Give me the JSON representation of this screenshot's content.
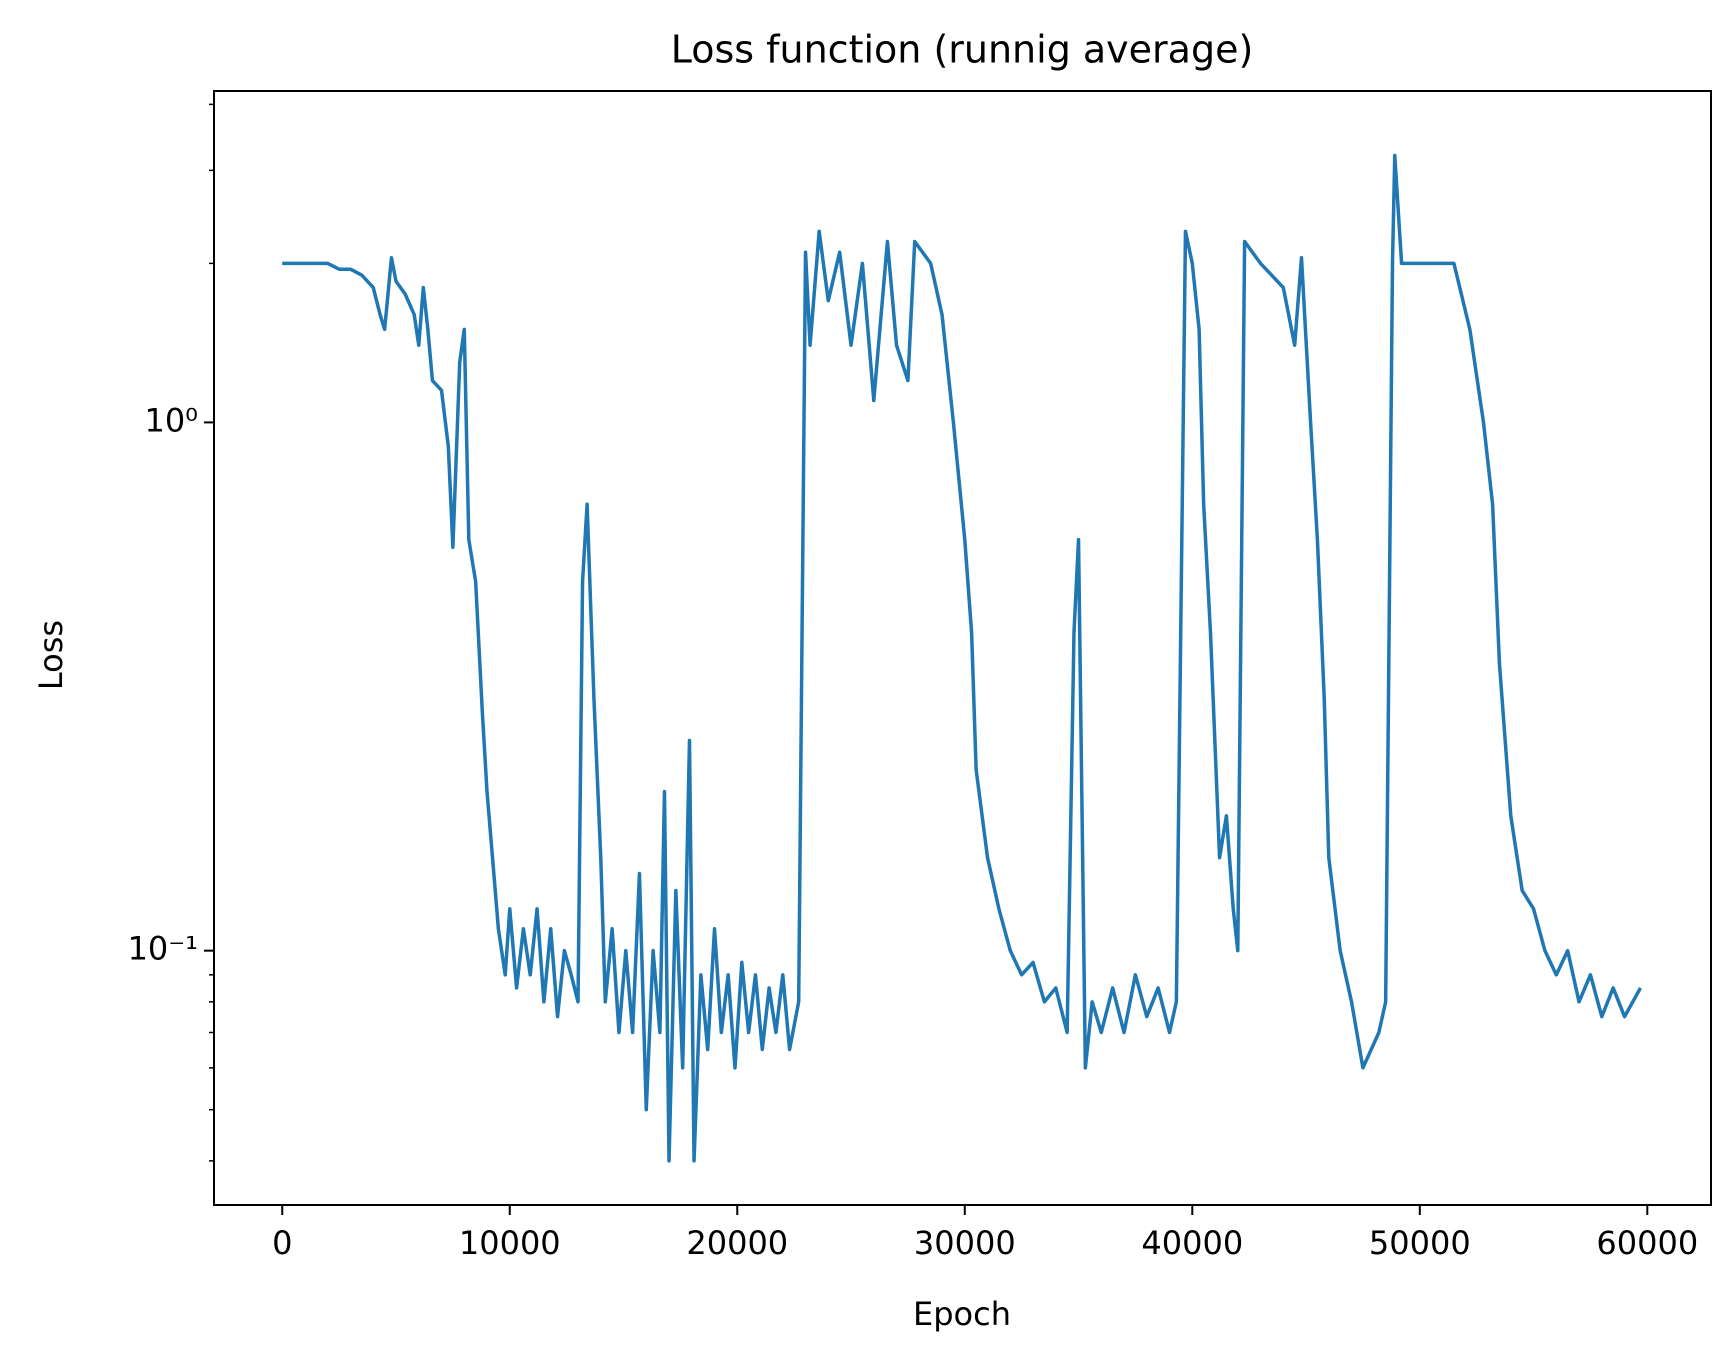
{
  "chart_data": {
    "type": "line",
    "title": "Loss function (runnig average)",
    "xlabel": "Epoch",
    "ylabel": "Loss",
    "xlim": [
      -3000,
      62800
    ],
    "xticks": [
      0,
      10000,
      20000,
      30000,
      40000,
      50000,
      60000
    ],
    "ylim": [
      0.033,
      4.24
    ],
    "yscale": "log",
    "yticks": [
      {
        "value": 0.1,
        "label": "10⁻¹"
      },
      {
        "value": 1,
        "label": "10⁰"
      }
    ],
    "yminorticks": [
      0.04,
      0.05,
      0.06,
      0.07,
      0.08,
      0.09,
      2,
      3,
      4
    ],
    "grid": false,
    "x": [
      0,
      1000,
      2000,
      2500,
      3000,
      3500,
      4000,
      4300,
      4500,
      4800,
      5000,
      5400,
      5800,
      6000,
      6200,
      6400,
      6600,
      7000,
      7300,
      7500,
      7800,
      8000,
      8200,
      8500,
      8800,
      9000,
      9300,
      9500,
      9800,
      10000,
      10300,
      10600,
      10900,
      11200,
      11500,
      11800,
      12100,
      12400,
      12700,
      13000,
      13200,
      13400,
      13700,
      14000,
      14200,
      14500,
      14800,
      15100,
      15400,
      15700,
      16000,
      16300,
      16600,
      16800,
      17000,
      17300,
      17600,
      17900,
      18100,
      18400,
      18700,
      19000,
      19300,
      19600,
      19900,
      20200,
      20500,
      20800,
      21100,
      21400,
      21700,
      22000,
      22300,
      22700,
      23000,
      23200,
      23600,
      24000,
      24500,
      25000,
      25500,
      26000,
      26600,
      27000,
      27500,
      27800,
      28500,
      29000,
      29500,
      30000,
      30300,
      30500,
      31000,
      31500,
      32000,
      32500,
      33000,
      33500,
      34000,
      34500,
      34800,
      35000,
      35300,
      35600,
      36000,
      36500,
      37000,
      37500,
      38000,
      38500,
      39000,
      39300,
      39700,
      40000,
      40300,
      40500,
      40800,
      41200,
      41500,
      41800,
      42000,
      42300,
      43000,
      44000,
      44500,
      44800,
      45200,
      45500,
      45800,
      46000,
      46500,
      47000,
      47500,
      48200,
      48500,
      48800,
      48900,
      49200,
      50000,
      51500,
      52200,
      52800,
      53200,
      53500,
      54000,
      54500,
      55000,
      55500,
      56000,
      56500,
      57000,
      57500,
      58000,
      58500,
      59000,
      59700
    ],
    "series": [
      {
        "name": "Loss",
        "color": "#1f77b4",
        "values": [
          2.0,
          2.0,
          2.0,
          1.95,
          1.95,
          1.9,
          1.8,
          1.6,
          1.5,
          2.05,
          1.85,
          1.75,
          1.6,
          1.4,
          1.8,
          1.5,
          1.2,
          1.15,
          0.9,
          0.58,
          1.3,
          1.5,
          0.6,
          0.5,
          0.28,
          0.2,
          0.14,
          0.11,
          0.09,
          0.12,
          0.085,
          0.11,
          0.09,
          0.12,
          0.08,
          0.11,
          0.075,
          0.1,
          0.09,
          0.08,
          0.5,
          0.7,
          0.3,
          0.15,
          0.08,
          0.11,
          0.07,
          0.1,
          0.07,
          0.14,
          0.05,
          0.1,
          0.07,
          0.2,
          0.04,
          0.13,
          0.06,
          0.25,
          0.04,
          0.09,
          0.065,
          0.11,
          0.07,
          0.09,
          0.06,
          0.095,
          0.07,
          0.09,
          0.065,
          0.085,
          0.07,
          0.09,
          0.065,
          0.08,
          2.1,
          1.4,
          2.3,
          1.7,
          2.1,
          1.4,
          2.0,
          1.1,
          2.2,
          1.4,
          1.2,
          2.2,
          2.0,
          1.6,
          1.0,
          0.6,
          0.4,
          0.22,
          0.15,
          0.12,
          0.1,
          0.09,
          0.095,
          0.08,
          0.085,
          0.07,
          0.4,
          0.6,
          0.06,
          0.08,
          0.07,
          0.085,
          0.07,
          0.09,
          0.075,
          0.085,
          0.07,
          0.08,
          2.3,
          2.0,
          1.5,
          0.7,
          0.4,
          0.15,
          0.18,
          0.12,
          0.1,
          2.2,
          2.0,
          1.8,
          1.4,
          2.05,
          1.0,
          0.6,
          0.3,
          0.15,
          0.1,
          0.08,
          0.06,
          0.07,
          0.08,
          2.0,
          3.2,
          2.0,
          2.0,
          2.0,
          1.5,
          1.0,
          0.7,
          0.35,
          0.18,
          0.13,
          0.12,
          0.1,
          0.09,
          0.1,
          0.08,
          0.09,
          0.075,
          0.085,
          0.075,
          0.085
        ]
      }
    ]
  }
}
